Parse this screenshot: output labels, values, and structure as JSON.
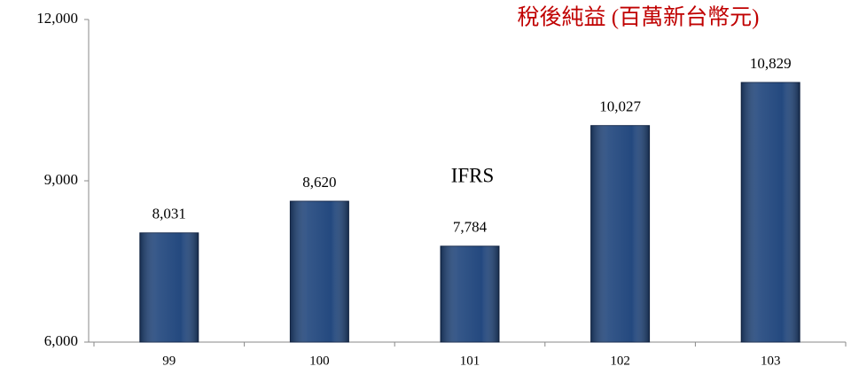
{
  "chart_data": {
    "type": "bar",
    "title": "稅後純益 (百萬新台幣元)",
    "annotations": [
      "IFRS"
    ],
    "categories": [
      "99",
      "100",
      "101",
      "102",
      "103"
    ],
    "values": [
      8031,
      8620,
      7784,
      10027,
      10829
    ],
    "value_labels": [
      "8,031",
      "8,620",
      "7,784",
      "10,027",
      "10,829"
    ],
    "color": "#24497f",
    "ylim": [
      6000,
      12000
    ],
    "yticks": [
      {
        "value": 6000,
        "label": "6,000"
      },
      {
        "value": 9000,
        "label": "9,000"
      },
      {
        "value": 12000,
        "label": "12,000"
      }
    ]
  }
}
